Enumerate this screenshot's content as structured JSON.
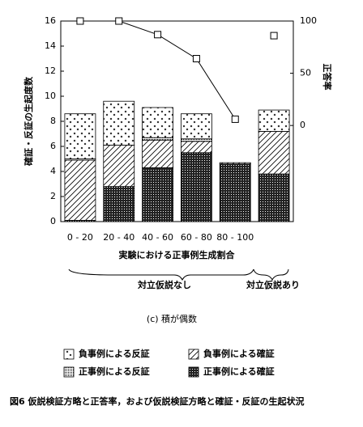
{
  "chart_data": {
    "type": "bar",
    "subtitle": "(c) 積が偶数",
    "caption": "図6 仮説検証方略と正答率，および仮説検証方略と確証・反証の生起状況",
    "y_label": "確証・反証の生起度数",
    "y2_label": "正答率",
    "x_label": "実験における正事例生成割合",
    "annotations": [
      "対立仮説なし",
      "対立仮説あり"
    ],
    "categories": [
      "0 - 20",
      "20 - 40",
      "40 - 60",
      "60 - 80",
      "80 - 100",
      null
    ],
    "series": [
      {
        "name": "正事例による確証",
        "pattern": "dark",
        "values": [
          0.1,
          2.8,
          4.3,
          5.5,
          4.6,
          3.8
        ]
      },
      {
        "name": "負事例による確証",
        "pattern": "hatch",
        "values": [
          4.8,
          3.3,
          2.2,
          0.9,
          0.1,
          3.4
        ]
      },
      {
        "name": "正事例による反証",
        "pattern": "dots",
        "values": [
          0.1,
          0,
          0.2,
          0.2,
          0,
          0
        ]
      },
      {
        "name": "負事例による反証",
        "pattern": "cross",
        "values": [
          3.6,
          3.5,
          2.4,
          2.0,
          0,
          1.7
        ]
      },
      {
        "type": "line",
        "axis": "y2",
        "values": [
          100,
          100,
          87,
          64,
          6,
          null
        ]
      },
      {
        "type": "line",
        "axis": "y2",
        "values": [
          null,
          null,
          null,
          null,
          null,
          86
        ]
      }
    ],
    "ylim": [
      0,
      16
    ],
    "yticks": [
      0,
      2,
      4,
      6,
      8,
      10,
      12,
      14,
      16
    ],
    "y2lim": [
      -92,
      100
    ],
    "y2ticks": [
      0,
      50,
      100
    ]
  }
}
